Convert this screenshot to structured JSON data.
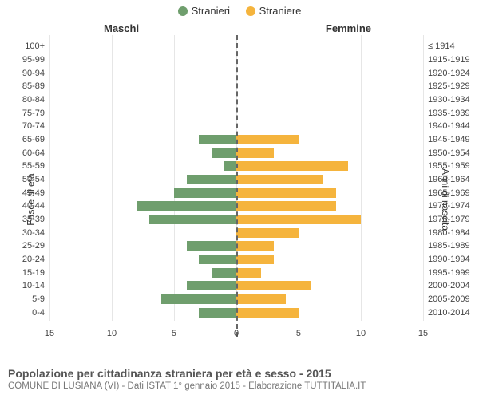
{
  "legend": {
    "male": {
      "label": "Stranieri",
      "color": "#6f9e6d"
    },
    "female": {
      "label": "Straniere",
      "color": "#f5b43d"
    }
  },
  "headers": {
    "left": "Maschi",
    "right": "Femmine"
  },
  "yaxis": {
    "left_title": "Fasce di età",
    "right_title": "Anni di nascita"
  },
  "xaxis": {
    "min": -15,
    "max": 15,
    "ticks": [
      -15,
      -10,
      -5,
      0,
      5,
      10,
      15
    ],
    "tick_labels": [
      "15",
      "10",
      "5",
      "0",
      "5",
      "10",
      "15"
    ]
  },
  "grid_color": "#e6e6e6",
  "centerline_color": "#666666",
  "background_color": "#ffffff",
  "label_fontsize": 11,
  "tick_fontsize": 11,
  "caption": {
    "title": "Popolazione per cittadinanza straniera per età e sesso - 2015",
    "subtitle": "COMUNE DI LUSIANA (VI) - Dati ISTAT 1° gennaio 2015 - Elaborazione TUTTITALIA.IT",
    "title_fontsize": 14,
    "subtitle_fontsize": 11.5,
    "title_color": "#555555",
    "subtitle_color": "#777777"
  },
  "rows": [
    {
      "age": "100+",
      "year": "≤ 1914",
      "m": 0,
      "f": 0
    },
    {
      "age": "95-99",
      "year": "1915-1919",
      "m": 0,
      "f": 0
    },
    {
      "age": "90-94",
      "year": "1920-1924",
      "m": 0,
      "f": 0
    },
    {
      "age": "85-89",
      "year": "1925-1929",
      "m": 0,
      "f": 0
    },
    {
      "age": "80-84",
      "year": "1930-1934",
      "m": 0,
      "f": 0
    },
    {
      "age": "75-79",
      "year": "1935-1939",
      "m": 0,
      "f": 0
    },
    {
      "age": "70-74",
      "year": "1940-1944",
      "m": 0,
      "f": 0
    },
    {
      "age": "65-69",
      "year": "1945-1949",
      "m": 3,
      "f": 5
    },
    {
      "age": "60-64",
      "year": "1950-1954",
      "m": 2,
      "f": 3
    },
    {
      "age": "55-59",
      "year": "1955-1959",
      "m": 1,
      "f": 9
    },
    {
      "age": "50-54",
      "year": "1960-1964",
      "m": 4,
      "f": 7
    },
    {
      "age": "45-49",
      "year": "1965-1969",
      "m": 5,
      "f": 8
    },
    {
      "age": "40-44",
      "year": "1970-1974",
      "m": 8,
      "f": 8
    },
    {
      "age": "35-39",
      "year": "1975-1979",
      "m": 7,
      "f": 10
    },
    {
      "age": "30-34",
      "year": "1980-1984",
      "m": 0,
      "f": 5
    },
    {
      "age": "25-29",
      "year": "1985-1989",
      "m": 4,
      "f": 3
    },
    {
      "age": "20-24",
      "year": "1990-1994",
      "m": 3,
      "f": 3
    },
    {
      "age": "15-19",
      "year": "1995-1999",
      "m": 2,
      "f": 2
    },
    {
      "age": "10-14",
      "year": "2000-2004",
      "m": 4,
      "f": 6
    },
    {
      "age": "5-9",
      "year": "2005-2009",
      "m": 6,
      "f": 4
    },
    {
      "age": "0-4",
      "year": "2010-2014",
      "m": 3,
      "f": 5
    }
  ]
}
